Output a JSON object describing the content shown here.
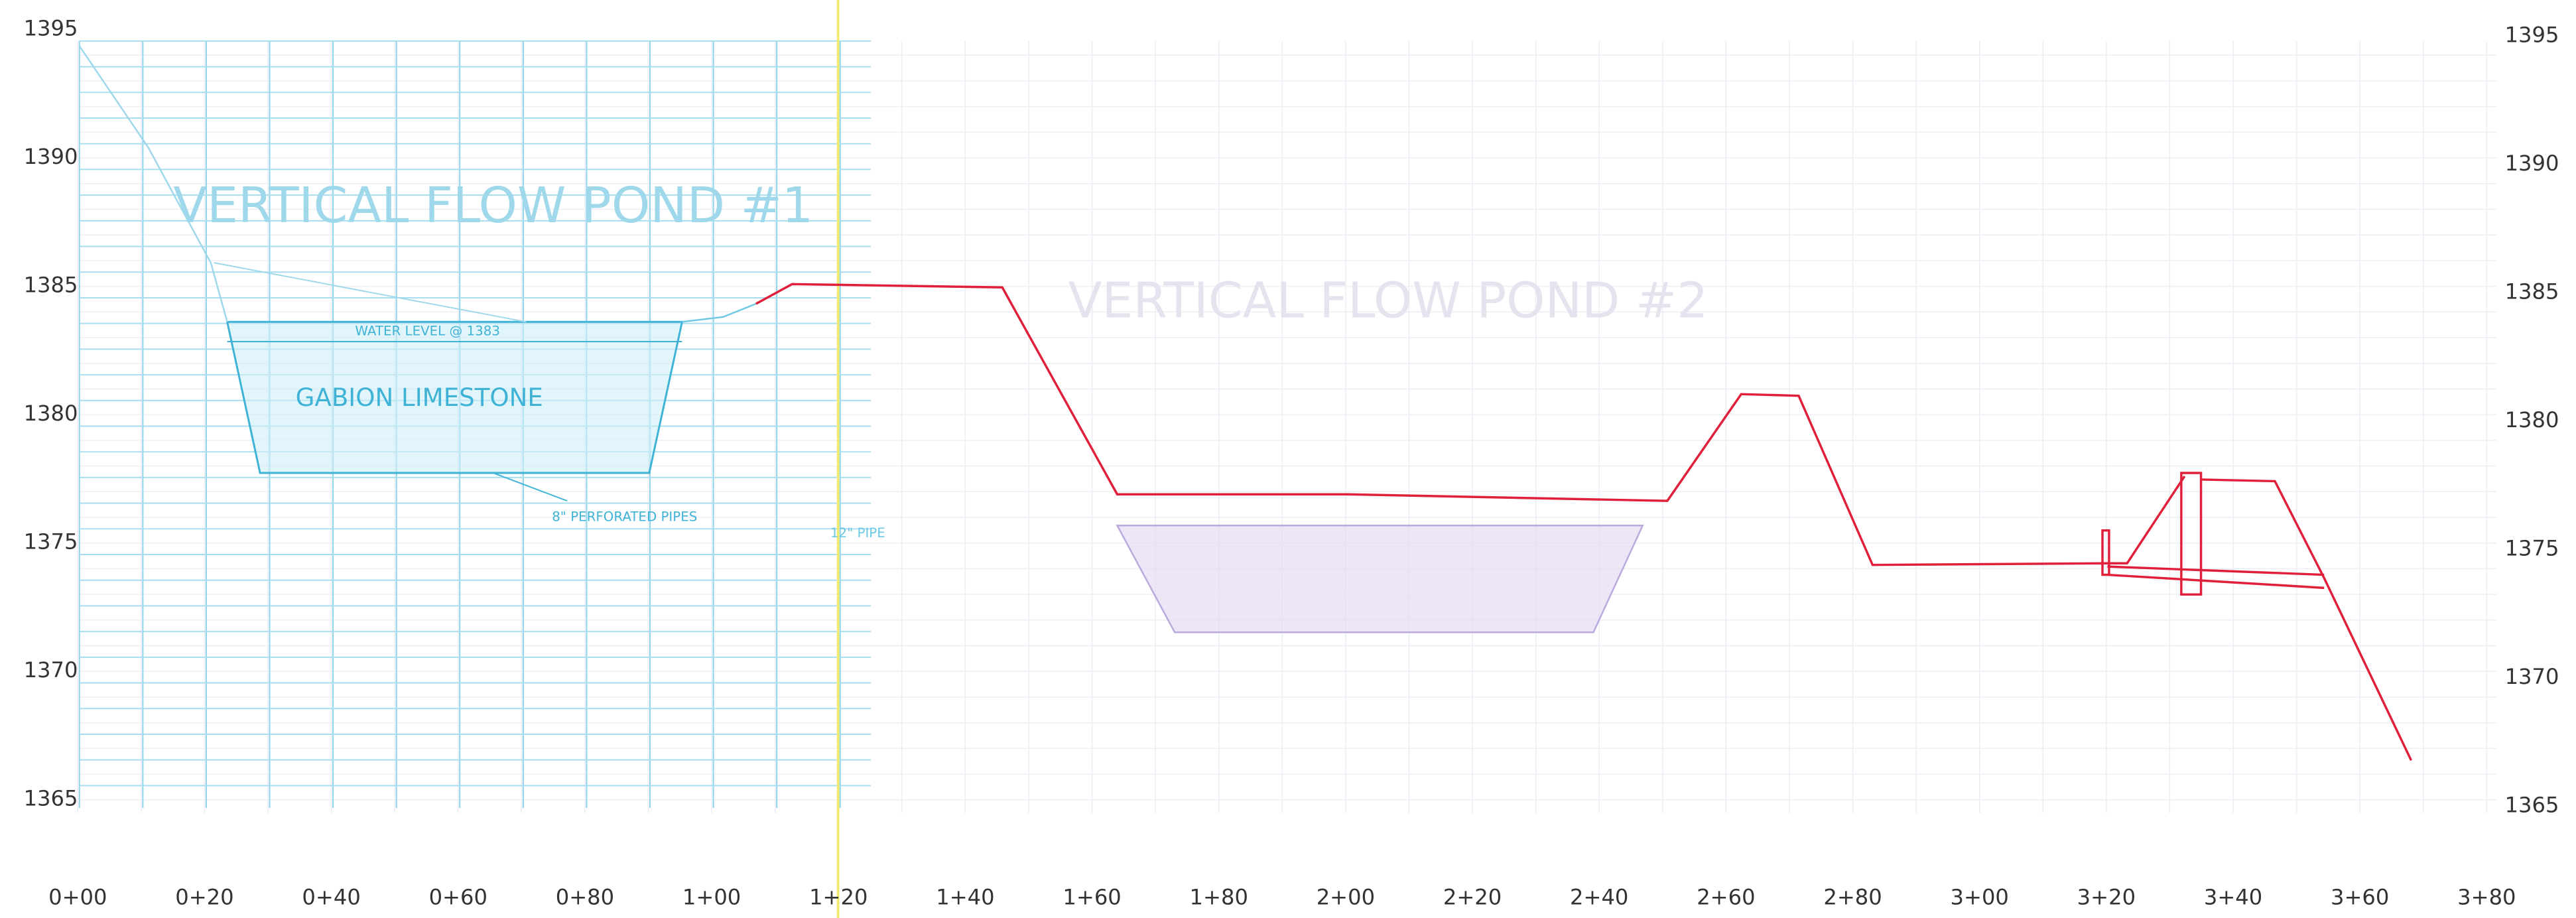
{
  "left_axis": {
    "labels": [
      1395,
      1390,
      1385,
      1380,
      1375,
      1370,
      1365
    ]
  },
  "right_axis": {
    "labels": [
      1395,
      1390,
      1385,
      1380,
      1375,
      1370,
      1365
    ]
  },
  "stations": {
    "labels": [
      "0+00",
      "0+20",
      "0+40",
      "0+60",
      "0+80",
      "1+00",
      "1+20",
      "1+40",
      "1+60",
      "1+80",
      "2+00",
      "2+20",
      "2+40",
      "2+60",
      "2+80",
      "3+00",
      "3+20",
      "3+40",
      "3+60",
      "3+80"
    ]
  },
  "pond1": {
    "title": "VERTICAL FLOW POND #1",
    "water_level": "WATER LEVEL @ 1383",
    "fill": "GABION LIMESTONE",
    "pipes": "8\" PERFORATED PIPES",
    "outlet": "12\" PIPE"
  },
  "pond2": {
    "title": "VERTICAL FLOW POND #2"
  }
}
